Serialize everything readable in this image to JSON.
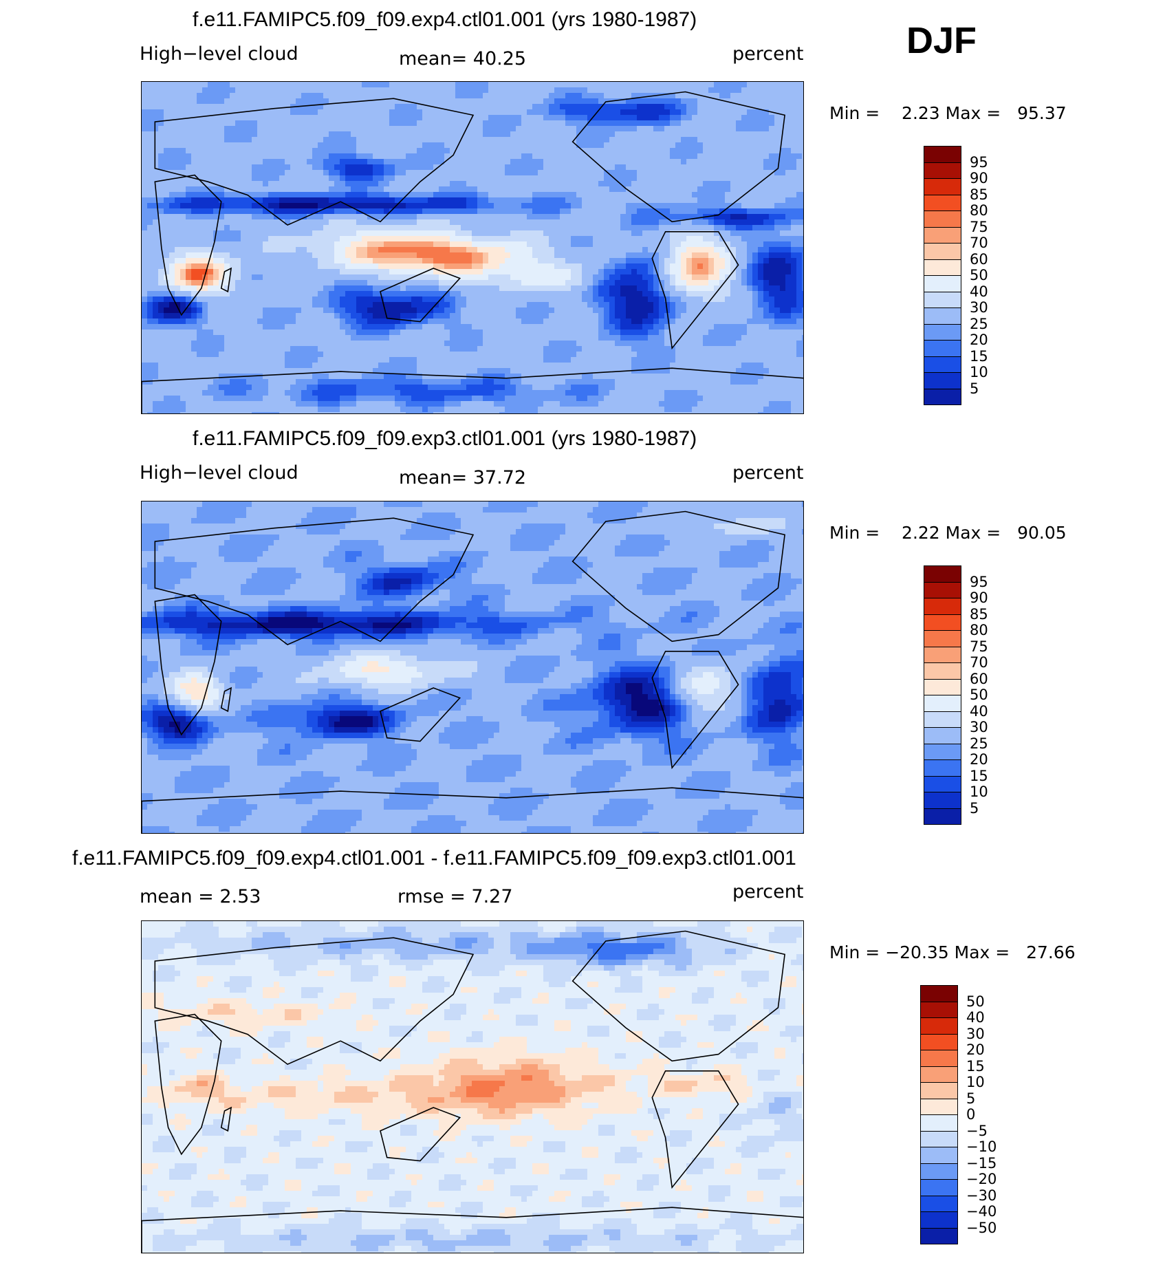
{
  "season": "DJF",
  "colors": {
    "seq": [
      "#08087a",
      "#0a1fa8",
      "#0d32cc",
      "#1a4fe6",
      "#3b74f2",
      "#6b9af5",
      "#9cbcf7",
      "#c8dbf9",
      "#e3effc",
      "#fde9d9",
      "#fbc7a8",
      "#f9a077",
      "#f6784a",
      "#f24f22",
      "#d72a0a",
      "#a81005",
      "#7a0202"
    ],
    "land": "#000000"
  },
  "panels": [
    {
      "title": "f.e11.FAMIPC5.f09_f09.exp4.ctl01.001 (yrs 1980-1987)",
      "left_label": "High−level cloud",
      "center_label": "mean=   40.25",
      "units": "percent",
      "minmax": "Min =    2.23 Max =   95.37",
      "colorbar_labels": [
        "95",
        "90",
        "85",
        "80",
        "75",
        "70",
        "60",
        "50",
        "40",
        "30",
        "25",
        "20",
        "15",
        "10",
        "5"
      ]
    },
    {
      "title": "f.e11.FAMIPC5.f09_f09.exp3.ctl01.001 (yrs 1980-1987)",
      "left_label": "High−level cloud",
      "center_label": "mean=   37.72",
      "units": "percent",
      "minmax": "Min =    2.22 Max =   90.05",
      "colorbar_labels": [
        "95",
        "90",
        "85",
        "80",
        "75",
        "70",
        "60",
        "50",
        "40",
        "30",
        "25",
        "20",
        "15",
        "10",
        "5"
      ]
    },
    {
      "title": "f.e11.FAMIPC5.f09_f09.exp4.ctl01.001 - f.e11.FAMIPC5.f09_f09.exp3.ctl01.001",
      "left_label": "mean =    2.53",
      "center_label": "rmse =    7.27",
      "units": "percent",
      "minmax": "Min = −20.35 Max =   27.66",
      "colorbar_labels": [
        "50",
        "40",
        "30",
        "20",
        "15",
        "10",
        "5",
        "0",
        "−5",
        "−10",
        "−15",
        "−20",
        "−30",
        "−40",
        "−50"
      ]
    }
  ]
}
